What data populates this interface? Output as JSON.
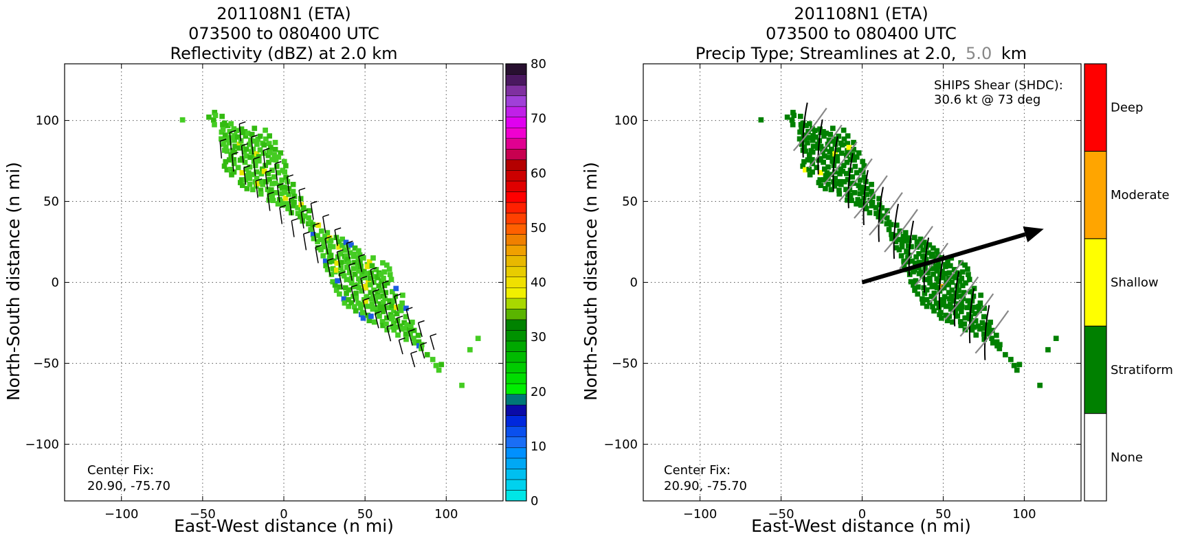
{
  "colors": {
    "stratiform": "#008000",
    "shallow": "#ffff00",
    "moderate": "#ffa500",
    "deep": "#ff0000",
    "reflectivity_green": "#44cc22",
    "reflectivity_yellow": "#e6e600",
    "reflectivity_blue": "#1d5ce0",
    "shear_arrow": "#000000",
    "streamline_upper": "#888888",
    "streamline_lower": "#000000"
  },
  "chart_data": [
    {
      "type": "heatmap",
      "title_lines": [
        "201108N1 (ETA)",
        "073500 to 080400 UTC",
        "Reflectivity (dBZ) at 2.0 km"
      ],
      "xlabel": "East-West distance (n mi)",
      "ylabel": "North-South distance (n mi)",
      "xlim": [
        -135,
        135
      ],
      "ylim": [
        -135,
        135
      ],
      "xticks": [
        -100,
        -50,
        0,
        50,
        100
      ],
      "yticks": [
        -100,
        -50,
        0,
        50,
        100
      ],
      "grid": true,
      "annotation": [
        "Center Fix:",
        "20.90, -75.70"
      ],
      "colorbar": {
        "label_ticks": [
          0,
          10,
          20,
          30,
          40,
          50,
          60,
          70,
          80
        ],
        "colors": [
          "#00e6e6",
          "#00d2ee",
          "#00bff0",
          "#00a8f5",
          "#0090ff",
          "#1a6ef5",
          "#0a50ee",
          "#0028dd",
          "#0a0aa8",
          "#007777",
          "#00ee00",
          "#00dd00",
          "#00cc00",
          "#00bb00",
          "#00a800",
          "#009200",
          "#008200",
          "#5ab400",
          "#a8d800",
          "#f0f000",
          "#f0e000",
          "#e8cc00",
          "#e8b800",
          "#f0a000",
          "#f08000",
          "#ff6000",
          "#ff4000",
          "#ff2000",
          "#ff0000",
          "#e00000",
          "#cc0000",
          "#b40000",
          "#c80050",
          "#e00090",
          "#f000d0",
          "#e000f0",
          "#c020e8",
          "#a040d8",
          "#7f30a0",
          "#4a1860",
          "#281030"
        ]
      },
      "echo_band": {
        "start": [
          -40,
          100
        ],
        "end": [
          90,
          -45
        ],
        "half_width_nmi": 14
      },
      "wind_barbs": "black barbs at 2.0 km along the band"
    },
    {
      "type": "heatmap",
      "title_lines": [
        "201108N1 (ETA)",
        "073500 to 080400 UTC",
        "Precip Type; Streamlines at 2.0,",
        "5.0",
        "km"
      ],
      "xlabel": "East-West distance (n mi)",
      "ylabel": "North-South distance (n mi)",
      "xlim": [
        -135,
        135
      ],
      "ylim": [
        -135,
        135
      ],
      "xticks": [
        -100,
        -50,
        0,
        50,
        100
      ],
      "yticks": [
        -100,
        -50,
        0,
        50,
        100
      ],
      "grid": true,
      "annotation": [
        "Center Fix:",
        "20.90, -75.70"
      ],
      "shear_text": [
        "SHIPS Shear (SHDC):",
        "30.6 kt @ 73 deg"
      ],
      "shear": {
        "speed_kt": 30.6,
        "direction_deg": 73,
        "arrow_from": [
          0,
          0
        ],
        "arrow_to": [
          112,
          33
        ]
      },
      "categories": [
        "None",
        "Stratiform",
        "Shallow",
        "Moderate",
        "Deep"
      ],
      "category_colors": [
        "#ffffff",
        "#008000",
        "#ffff00",
        "#ffa500",
        "#ff0000"
      ]
    }
  ]
}
